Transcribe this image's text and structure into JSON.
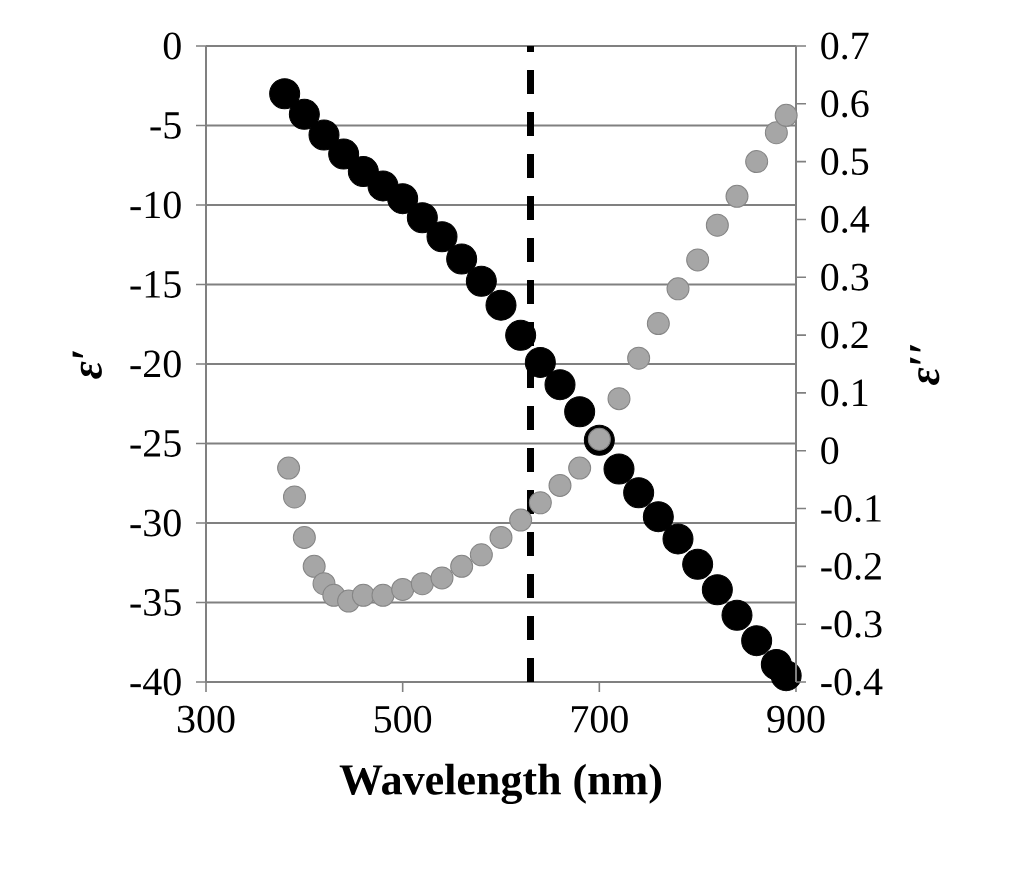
{
  "chart_data": {
    "type": "scatter",
    "xlabel": "Wavelength (nm)",
    "ylabel": "ε′",
    "y2label": "ε′′",
    "xlim": [
      300,
      900
    ],
    "xticks": [
      300,
      500,
      700,
      900
    ],
    "ylim": [
      -40,
      0
    ],
    "yticks": [
      -40,
      -35,
      -30,
      -25,
      -20,
      -15,
      -10,
      -5,
      0
    ],
    "y2lim": [
      -0.4,
      0.7
    ],
    "y2ticks": [
      -0.4,
      -0.3,
      -0.2,
      -0.1,
      0,
      0.1,
      0.2,
      0.3,
      0.4,
      0.5,
      0.6,
      0.7
    ],
    "grid": "y",
    "marker": "circle",
    "ref_lines": [
      {
        "axis": "x",
        "value": 630,
        "color": "#000000",
        "line_style": "dashed"
      }
    ],
    "series": [
      {
        "color": "#000000",
        "x": [
          380,
          400,
          420,
          440,
          460,
          480,
          500,
          520,
          540,
          560,
          580,
          600,
          620,
          640,
          660,
          680,
          700,
          720,
          740,
          760,
          780,
          800,
          820,
          840,
          860,
          880,
          890
        ],
        "values": [
          -3.0,
          -4.3,
          -5.6,
          -6.8,
          -7.9,
          -8.8,
          -9.6,
          -10.8,
          -12.0,
          -13.4,
          -14.8,
          -16.3,
          -18.2,
          -19.9,
          -21.3,
          -23.0,
          -24.8,
          -26.6,
          -28.1,
          -29.6,
          -31.0,
          -32.6,
          -34.2,
          -35.8,
          -37.4,
          -38.9,
          -39.6
        ]
      },
      {
        "color": "#a6a6a6",
        "axis": "y2",
        "x": [
          384,
          390,
          400,
          410,
          420,
          430,
          445,
          460,
          480,
          500,
          520,
          540,
          560,
          580,
          600,
          620,
          640,
          660,
          680,
          700,
          720,
          740,
          760,
          780,
          800,
          820,
          840,
          860,
          880,
          890
        ],
        "values": [
          -0.03,
          -0.08,
          -0.15,
          -0.2,
          -0.23,
          -0.25,
          -0.26,
          -0.25,
          -0.25,
          -0.24,
          -0.23,
          -0.22,
          -0.2,
          -0.18,
          -0.15,
          -0.12,
          -0.09,
          -0.06,
          -0.03,
          0.02,
          0.09,
          0.16,
          0.22,
          0.28,
          0.33,
          0.39,
          0.44,
          0.5,
          0.55,
          0.58
        ]
      }
    ]
  }
}
